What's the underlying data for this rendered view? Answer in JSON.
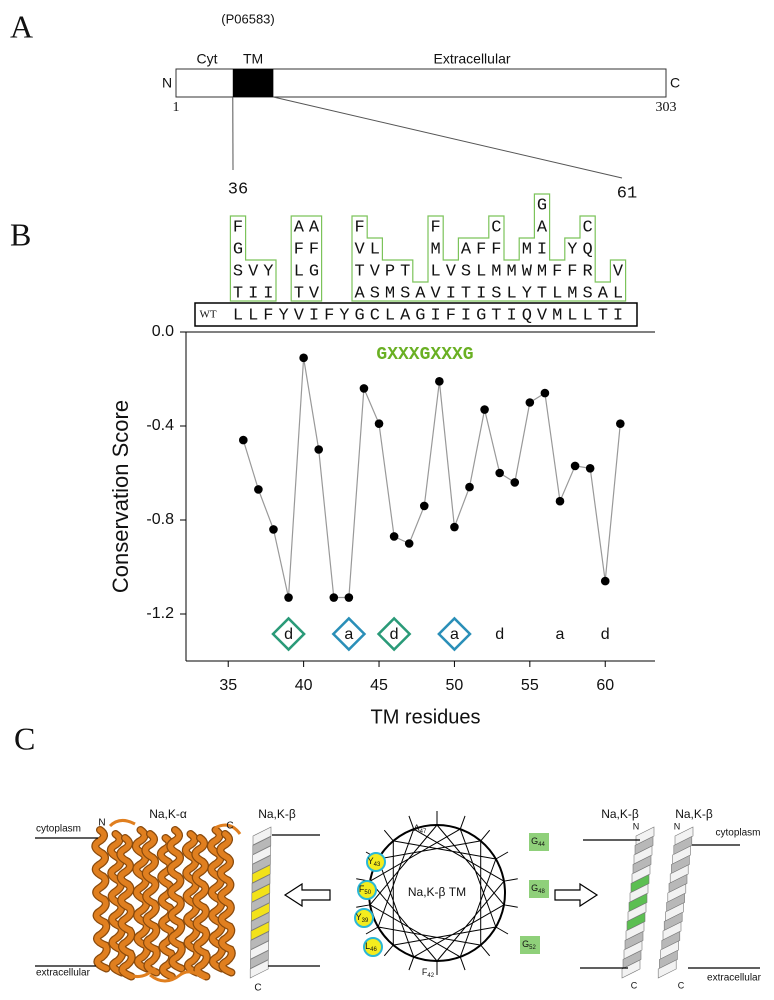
{
  "panel_labels": [
    "A",
    "B",
    "C"
  ],
  "panel_a": {
    "accession": "(P06583)",
    "cyt": "Cyt",
    "tm": "TM",
    "extracellular": "Extracellular",
    "n_term": "N",
    "c_term": "C",
    "start": 1,
    "end": 303,
    "tm_start": 36,
    "tm_end": 61
  },
  "alignment": {
    "substitutions": [
      "                    G",
      "F   AA  F    F   C  A  C",
      "G   FF  VL   M AFF MI YQ",
      "SVY LG  TVPT LVSLMMWMFFR V",
      "TII TV  ASMSAVITISLYTLMSAL"
    ],
    "wt_label": "WT",
    "wt_sequence": "LLFYVIFYGCLAGIFIGTIQVMLLTI"
  },
  "chart_data": {
    "type": "line",
    "x_label": "TM residues",
    "y_label": "Conservation Score",
    "motif_label": "GXXXGXXXG",
    "x": [
      36,
      37,
      38,
      39,
      40,
      41,
      42,
      43,
      44,
      45,
      46,
      47,
      48,
      49,
      50,
      51,
      52,
      53,
      54,
      55,
      56,
      57,
      58,
      59,
      60,
      61
    ],
    "values": [
      -0.46,
      -0.67,
      -0.84,
      -1.13,
      -0.11,
      -0.5,
      -1.13,
      -1.13,
      -0.24,
      -0.39,
      -0.87,
      -0.9,
      -0.74,
      -0.21,
      -0.83,
      -0.66,
      -0.33,
      -0.6,
      -0.64,
      -0.3,
      -0.26,
      -0.72,
      -0.57,
      -0.58,
      -1.06,
      -0.39
    ],
    "color": "#999999",
    "marker_color": "#000000",
    "xlim": [
      32.2,
      63.3
    ],
    "xticks": [
      35,
      40,
      45,
      50,
      55,
      60
    ],
    "ylim": [
      -1.4,
      0
    ],
    "yticks": [
      {
        "value": 0,
        "label": "0.0"
      },
      -0.4,
      -0.8,
      -1.2
    ],
    "heptad_labels": [
      "d",
      "a",
      "d",
      "a",
      "d",
      "a",
      "d"
    ],
    "heptad_x": [
      39,
      43,
      46,
      50,
      53,
      57,
      60
    ],
    "heptad_box_colors": [
      "#2a9a78",
      "#2a8fb8",
      "#2a9a78",
      "#2a8fb8",
      null,
      null,
      null
    ]
  },
  "panel_c": {
    "left": {
      "alpha_label": "Na,K-α",
      "beta_label": "Na,K-β",
      "cytoplasm": "cytoplasm",
      "extracellular": "extracellular",
      "alpha_n": "N",
      "alpha_c": "C",
      "beta_c": "C"
    },
    "wheel": {
      "title": "Na,K-β TM",
      "residues": [
        {
          "aa": "Y",
          "pos": "43"
        },
        {
          "aa": "F",
          "pos": "50"
        },
        {
          "aa": "Y",
          "pos": "39"
        },
        {
          "aa": "L",
          "pos": "46"
        },
        {
          "aa": "A",
          "pos": "47"
        },
        {
          "aa": "G",
          "pos": "44"
        },
        {
          "aa": "G",
          "pos": "48"
        },
        {
          "aa": "G",
          "pos": "52"
        },
        {
          "aa": "F",
          "pos": "42"
        }
      ]
    },
    "right": {
      "beta_label_1": "Na,K-β",
      "beta_label_2": "Na,K-β",
      "n_1": "N",
      "n_2": "N",
      "c_1": "C",
      "c_2": "C",
      "cytoplasm": "cytoplasm",
      "extracellular": "extracellular"
    }
  }
}
